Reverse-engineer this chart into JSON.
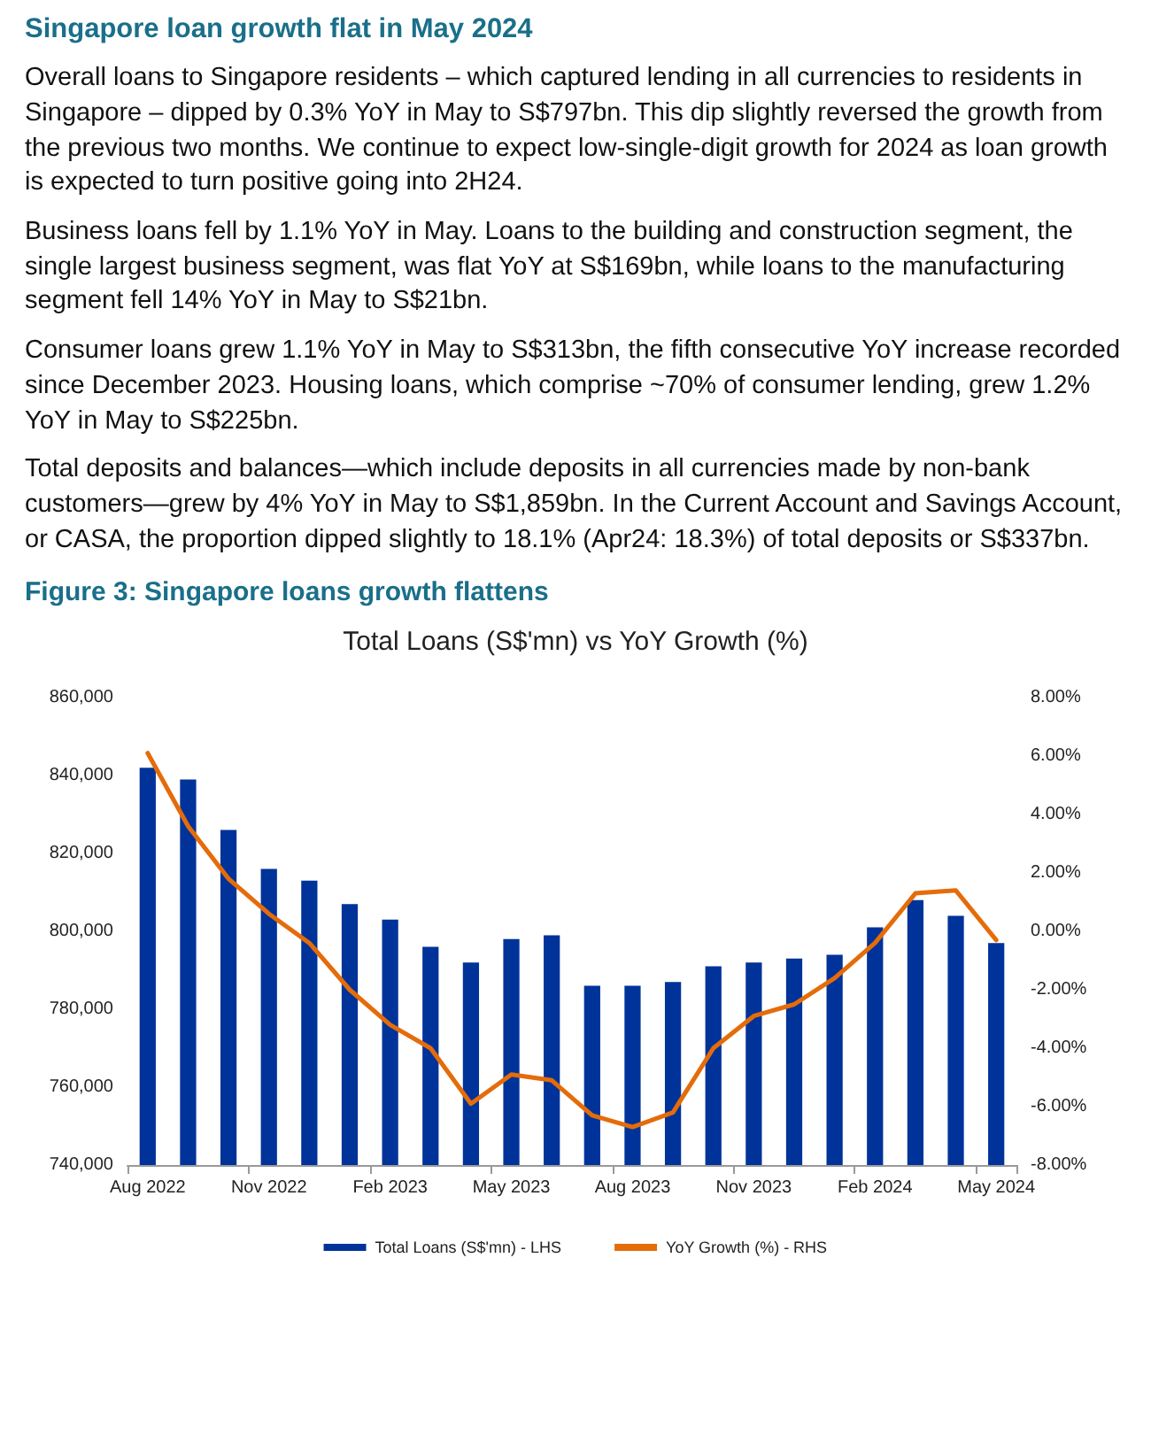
{
  "chart_data": {
    "type": "bar",
    "title": "Total Loans (S$'mn) vs YoY Growth (%)",
    "subtitle": "Figure 3: Singapore loans growth flattens",
    "annotations": [
      "Singapore loan growth flat in May 2024",
      "Overall loans to Singapore residents – which captured lending in all currencies to residents in Singapore – dipped by 0.3% YoY in May to S$797bn. This dip slightly reversed the growth from the previous two months. We continue to expect low-single-digit growth for 2024 as loan growth is expected to turn positive going into 2H24.",
      "Business loans fell by 1.1% YoY in May. Loans to the building and construction segment, the single largest business segment, was flat YoY at S$169bn, while loans to the manufacturing segment fell 14% YoY in May to S$21bn.",
      "Consumer loans grew 1.1% YoY in May to S$313bn, the fifth consecutive YoY increase recorded since December 2023. Housing loans, which comprise ~70% of consumer lending, grew 1.2% YoY in May to S$225bn.",
      "Total deposits and balances—which include deposits in all currencies made by non-bank customers—grew by 4% YoY in May to S$1,859bn. In the Current Account and Savings Account, or CASA, the proportion dipped slightly to 18.1% (Apr24: 18.3%) of total deposits or S$337bn."
    ],
    "categories": [
      "Aug 2022",
      null,
      null,
      "Nov 2022",
      null,
      null,
      "Feb 2023",
      null,
      null,
      "May 2023",
      null,
      null,
      "Aug 2023",
      null,
      null,
      "Nov 2023",
      null,
      null,
      "Feb 2024",
      null,
      null,
      "May 2024"
    ],
    "series": [
      {
        "name": "Total Loans (S$'mn) - LHS",
        "color": "#003399",
        "values": [
          842000,
          839000,
          826000,
          816000,
          813000,
          807000,
          803000,
          796000,
          792000,
          798000,
          799000,
          786000,
          786000,
          787000,
          791000,
          792000,
          793000,
          794000,
          801000,
          808000,
          804000,
          797000
        ]
      },
      {
        "name": "YoY Growth (%) - RHS",
        "type": "line",
        "axis": "y2",
        "color": "#e46c0a",
        "values": [
          6.1,
          3.6,
          1.8,
          0.6,
          -0.4,
          -2.0,
          -3.2,
          -4.0,
          -5.9,
          -4.9,
          -5.1,
          -6.3,
          -6.7,
          -6.2,
          -4.0,
          -2.9,
          -2.5,
          -1.6,
          -0.4,
          1.3,
          1.4,
          -0.3
        ]
      }
    ],
    "ylim": [
      740000,
      860000
    ],
    "yticks": [
      {
        "value": 740000,
        "label": "740,000"
      },
      {
        "value": 760000,
        "label": "760,000"
      },
      {
        "value": 780000,
        "label": "780,000"
      },
      {
        "value": 800000,
        "label": "800,000"
      },
      {
        "value": 820000,
        "label": "820,000"
      },
      {
        "value": 840000,
        "label": "840,000"
      },
      {
        "value": 860000,
        "label": "860,000"
      }
    ],
    "y2lim": [
      -8,
      8
    ],
    "y2ticks": [
      {
        "value": -8,
        "label": "-8.00%"
      },
      {
        "value": -6,
        "label": "-6.00%"
      },
      {
        "value": -4,
        "label": "-4.00%"
      },
      {
        "value": -2,
        "label": "-2.00%"
      },
      {
        "value": 0,
        "label": "0.00%"
      },
      {
        "value": 2,
        "label": "2.00%"
      },
      {
        "value": 4,
        "label": "4.00%"
      },
      {
        "value": 6,
        "label": "6.00%"
      },
      {
        "value": 8,
        "label": "8.00%"
      }
    ],
    "grid": false,
    "legend": "bottom",
    "marker": "none",
    "line_style": "solid"
  }
}
